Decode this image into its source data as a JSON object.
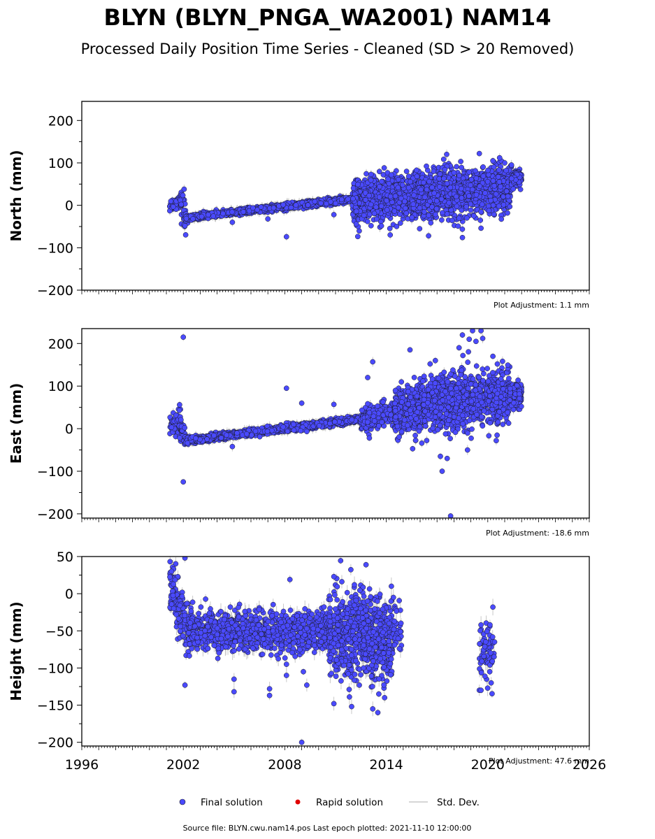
{
  "title": "BLYN (BLYN_PNGA_WA2001) NAM14",
  "subtitle": "Processed Daily Position Time Series - Cleaned (SD > 20 Removed)",
  "colors": {
    "final": "#4a4aff",
    "rapid": "#e00000",
    "stddev": "#c8c8c8",
    "marker_edge": "#1a1a1a"
  },
  "legend": {
    "final": "Final solution",
    "rapid": "Rapid solution",
    "std": "Std. Dev."
  },
  "footer": "Source file: BLYN.cwu.nam14.pos  Last epoch plotted: 2021-11-10 12:00:00",
  "chart_data": [
    {
      "type": "scatter",
      "ylabel": "North (mm)",
      "adjustment": "Plot Adjustment: 1.1 mm",
      "xlim": [
        1996,
        2026
      ],
      "ylim": [
        -200,
        245
      ],
      "yticks": [
        -200,
        -100,
        0,
        100,
        200
      ],
      "xticks": [
        1996,
        2002,
        2008,
        2014,
        2020,
        2026
      ],
      "segments": [
        {
          "x0": 2001.2,
          "x1": 2001.75,
          "y0": 0,
          "y1": 8,
          "spread": 8,
          "density": 0.25
        },
        {
          "x0": 2001.75,
          "x1": 2002.15,
          "y0": 15,
          "y1": -30,
          "spread": 18,
          "density": 0.25
        },
        {
          "x0": 2002.15,
          "x1": 2012.0,
          "y0": -30,
          "y1": 15,
          "spread": 3.5,
          "density": 0.3
        },
        {
          "x0": 2012.0,
          "x1": 2021.4,
          "y0": 12,
          "y1": 38,
          "spread": 26,
          "density": 0.6
        },
        {
          "x0": 2021.4,
          "x1": 2022.0,
          "y0": 60,
          "y1": 66,
          "spread": 9,
          "density": 0.6
        }
      ],
      "outliers": [
        [
          2002.05,
          38
        ],
        [
          2002.1,
          -48
        ],
        [
          2008.1,
          -74
        ],
        [
          2004.9,
          -40
        ],
        [
          2007.0,
          -32
        ],
        [
          2010.9,
          -22
        ],
        [
          2013.1,
          73
        ],
        [
          2013.1,
          -48
        ],
        [
          2018.0,
          77
        ],
        [
          2018.9,
          78
        ],
        [
          2018.5,
          -76
        ],
        [
          2019.5,
          122
        ],
        [
          2019.6,
          -54
        ],
        [
          2020.3,
          105
        ],
        [
          2020.7,
          112
        ],
        [
          2021.0,
          100
        ],
        [
          2021.4,
          95
        ],
        [
          2021.3,
          -3
        ],
        [
          2017.4,
          63
        ],
        [
          2016.5,
          -72
        ],
        [
          2015.2,
          80
        ]
      ]
    },
    {
      "type": "scatter",
      "ylabel": "East (mm)",
      "adjustment": "Plot Adjustment: -18.6 mm",
      "xlim": [
        1996,
        2026
      ],
      "ylim": [
        -210,
        235
      ],
      "yticks": [
        -200,
        -100,
        0,
        100,
        200
      ],
      "xticks": [
        1996,
        2002,
        2008,
        2014,
        2020,
        2026
      ],
      "segments": [
        {
          "x0": 2001.2,
          "x1": 2001.75,
          "y0": 5,
          "y1": 15,
          "spread": 14,
          "density": 0.25
        },
        {
          "x0": 2001.75,
          "x1": 2002.15,
          "y0": 20,
          "y1": -28,
          "spread": 18,
          "density": 0.25
        },
        {
          "x0": 2002.15,
          "x1": 2012.5,
          "y0": -28,
          "y1": 22,
          "spread": 4,
          "density": 0.3
        },
        {
          "x0": 2012.5,
          "x1": 2014.5,
          "y0": 22,
          "y1": 40,
          "spread": 12,
          "density": 0.5
        },
        {
          "x0": 2014.5,
          "x1": 2021.3,
          "y0": 40,
          "y1": 82,
          "spread": 30,
          "density": 0.6
        },
        {
          "x0": 2021.3,
          "x1": 2022.0,
          "y0": 72,
          "y1": 80,
          "spread": 14,
          "density": 0.6
        }
      ],
      "outliers": [
        [
          2002.0,
          215
        ],
        [
          2002.0,
          -125
        ],
        [
          2004.9,
          -42
        ],
        [
          2008.1,
          95
        ],
        [
          2009.0,
          60
        ],
        [
          2010.9,
          57
        ],
        [
          2013.2,
          157
        ],
        [
          2012.9,
          120
        ],
        [
          2013.0,
          -22
        ],
        [
          2015.4,
          185
        ],
        [
          2016.9,
          160
        ],
        [
          2017.3,
          -100
        ],
        [
          2017.6,
          -70
        ],
        [
          2017.2,
          -65
        ],
        [
          2018.8,
          -50
        ],
        [
          2017.8,
          -205
        ],
        [
          2018.3,
          190
        ],
        [
          2018.5,
          220
        ],
        [
          2018.9,
          210
        ],
        [
          2019.1,
          230
        ],
        [
          2019.6,
          230
        ],
        [
          2019.7,
          212
        ],
        [
          2019.3,
          205
        ],
        [
          2020.3,
          170
        ],
        [
          2020.5,
          -28
        ]
      ]
    },
    {
      "type": "scatter",
      "ylabel": "Height (mm)",
      "adjustment": "Plot Adjustment: 47.6 mm",
      "xlim": [
        1996,
        2026
      ],
      "ylim": [
        -205,
        50
      ],
      "yticks": [
        -200,
        -150,
        -100,
        -50,
        0,
        50
      ],
      "xticks": [
        1996,
        2002,
        2008,
        2014,
        2020,
        2026
      ],
      "segments": [
        {
          "x0": 2001.2,
          "x1": 2001.7,
          "y0": 10,
          "y1": -10,
          "spread": 18,
          "density": 0.3
        },
        {
          "x0": 2001.7,
          "x1": 2002.3,
          "y0": -20,
          "y1": -50,
          "spread": 16,
          "density": 0.3
        },
        {
          "x0": 2002.3,
          "x1": 2010.6,
          "y0": -50,
          "y1": -52,
          "spread": 13,
          "density": 0.35
        },
        {
          "x0": 2010.6,
          "x1": 2014.4,
          "y0": -55,
          "y1": -60,
          "spread": 28,
          "density": 0.55
        },
        {
          "x0": 2014.4,
          "x1": 2014.9,
          "y0": -45,
          "y1": -50,
          "spread": 15,
          "density": 0.2
        },
        {
          "x0": 2019.5,
          "x1": 2020.4,
          "y0": -80,
          "y1": -85,
          "spread": 22,
          "density": 0.2
        }
      ],
      "outliers": [
        [
          2002.1,
          48
        ],
        [
          2002.1,
          -123
        ],
        [
          2005.0,
          -132
        ],
        [
          2005.0,
          -115
        ],
        [
          2007.1,
          -137
        ],
        [
          2007.1,
          -128
        ],
        [
          2008.3,
          19
        ],
        [
          2008.1,
          -110
        ],
        [
          2008.1,
          -95
        ],
        [
          2009.0,
          -200
        ],
        [
          2009.1,
          -105
        ],
        [
          2009.3,
          -123
        ],
        [
          2010.9,
          23
        ],
        [
          2010.9,
          -148
        ],
        [
          2012.8,
          39
        ],
        [
          2013.5,
          -160
        ],
        [
          2013.2,
          -155
        ],
        [
          2013.9,
          -140
        ],
        [
          2014.3,
          10
        ],
        [
          2020.3,
          -18
        ],
        [
          2019.6,
          -130
        ],
        [
          2019.6,
          -42
        ],
        [
          2020.2,
          -120
        ],
        [
          2020.4,
          -65
        ]
      ]
    }
  ]
}
